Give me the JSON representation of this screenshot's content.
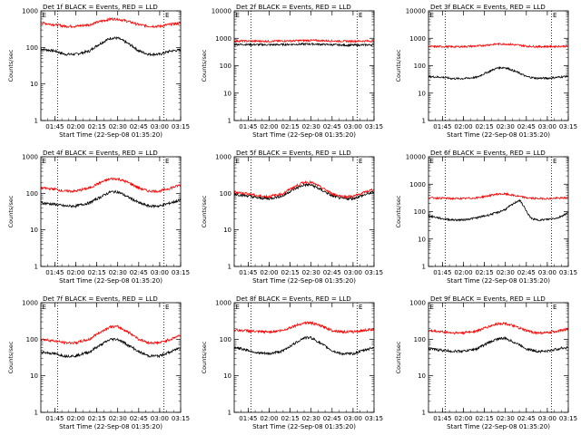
{
  "style": {
    "events_color": "#000000",
    "lld_color": "#ff0000",
    "frame_color": "#000000",
    "background": "#ffffff"
  },
  "chart_data": [
    {
      "type": "line",
      "title": "Det 1f BLACK = Events, RED = LLD",
      "corner_tag": "E",
      "xlabel": "Start Time (22-Sep-08 01:35:20)",
      "ylabel": "Counts/sec",
      "yscale": "log",
      "ylim": [
        1,
        1000
      ],
      "y_ticks": [
        1,
        10,
        100,
        1000
      ],
      "y_tick_labels": [
        "1",
        "10",
        "100",
        "1000"
      ],
      "xlim_minutes": [
        95,
        195
      ],
      "x_ticks": [
        105,
        120,
        135,
        150,
        165,
        180,
        195
      ],
      "x_tick_labels": [
        "01:45",
        "02:00",
        "02:15",
        "02:30",
        "02:45",
        "03:00",
        "03:15"
      ],
      "vlines_minutes": [
        107,
        183
      ],
      "series": [
        {
          "name": "Events",
          "color": "#000000",
          "t": [
            95,
            105,
            112,
            120,
            130,
            138,
            145,
            150,
            157,
            165,
            172,
            180,
            188,
            195
          ],
          "values": [
            90,
            80,
            65,
            65,
            80,
            130,
            180,
            180,
            130,
            80,
            65,
            65,
            80,
            85
          ]
        },
        {
          "name": "LLD",
          "color": "#ff0000",
          "t": [
            95,
            105,
            112,
            120,
            130,
            138,
            145,
            150,
            157,
            165,
            172,
            180,
            188,
            195
          ],
          "values": [
            470,
            420,
            380,
            380,
            420,
            520,
            600,
            600,
            520,
            420,
            380,
            380,
            430,
            460
          ]
        }
      ]
    },
    {
      "type": "line",
      "title": "Det 2f BLACK = Events, RED = LLD",
      "corner_tag": "E",
      "xlabel": "Start Time (22-Sep-08 01:35:20)",
      "ylabel": "Counts/sec",
      "yscale": "log",
      "ylim": [
        1,
        10000
      ],
      "y_ticks": [
        1,
        10,
        100,
        1000,
        10000
      ],
      "y_tick_labels": [
        "1",
        "10",
        "100",
        "1000",
        "10000"
      ],
      "xlim_minutes": [
        95,
        195
      ],
      "x_ticks": [
        105,
        120,
        135,
        150,
        165,
        180,
        195
      ],
      "x_tick_labels": [
        "01:45",
        "02:00",
        "02:15",
        "02:30",
        "02:45",
        "03:00",
        "03:15"
      ],
      "vlines_minutes": [
        107,
        183
      ],
      "series": [
        {
          "name": "Events",
          "color": "#000000",
          "t": [
            95,
            120,
            150,
            175,
            195
          ],
          "values": [
            600,
            580,
            620,
            560,
            580
          ]
        },
        {
          "name": "LLD",
          "color": "#ff0000",
          "t": [
            95,
            120,
            150,
            175,
            195
          ],
          "values": [
            800,
            780,
            840,
            780,
            800
          ]
        }
      ]
    },
    {
      "type": "line",
      "title": "Det 3f BLACK = Events, RED = LLD",
      "corner_tag": "E",
      "xlabel": "Start Time (22-Sep-08 01:35:20)",
      "ylabel": "Counts/sec",
      "yscale": "log",
      "ylim": [
        1,
        10000
      ],
      "y_ticks": [
        1,
        10,
        100,
        1000,
        10000
      ],
      "y_tick_labels": [
        "1",
        "10",
        "100",
        "1000",
        "10000"
      ],
      "xlim_minutes": [
        95,
        195
      ],
      "x_ticks": [
        105,
        120,
        135,
        150,
        165,
        180,
        195
      ],
      "x_tick_labels": [
        "01:45",
        "02:00",
        "02:15",
        "02:30",
        "02:45",
        "03:00",
        "03:15"
      ],
      "vlines_minutes": [
        107,
        183
      ],
      "series": [
        {
          "name": "Events",
          "color": "#000000",
          "t": [
            95,
            105,
            112,
            120,
            130,
            138,
            145,
            150,
            157,
            165,
            172,
            180,
            188,
            195
          ],
          "values": [
            40,
            38,
            34,
            34,
            38,
            60,
            85,
            85,
            62,
            40,
            35,
            35,
            38,
            42
          ]
        },
        {
          "name": "LLD",
          "color": "#ff0000",
          "t": [
            95,
            105,
            112,
            120,
            130,
            138,
            145,
            150,
            157,
            165,
            172,
            180,
            188,
            195
          ],
          "values": [
            500,
            500,
            490,
            500,
            520,
            580,
            620,
            620,
            580,
            520,
            500,
            500,
            510,
            520
          ]
        }
      ]
    },
    {
      "type": "line",
      "title": "Det 4f BLACK = Events, RED = LLD",
      "corner_tag": "E",
      "xlabel": "Start Time (22-Sep-08 01:35:20)",
      "ylabel": "Counts/sec",
      "yscale": "log",
      "ylim": [
        1,
        1000
      ],
      "y_ticks": [
        1,
        10,
        100,
        1000
      ],
      "y_tick_labels": [
        "1",
        "10",
        "100",
        "1000"
      ],
      "xlim_minutes": [
        95,
        195
      ],
      "x_ticks": [
        105,
        120,
        135,
        150,
        165,
        180,
        195
      ],
      "x_tick_labels": [
        "01:45",
        "02:00",
        "02:15",
        "02:30",
        "02:45",
        "03:00",
        "03:15"
      ],
      "vlines_minutes": [
        107,
        183
      ],
      "series": [
        {
          "name": "Events",
          "color": "#000000",
          "t": [
            95,
            105,
            112,
            120,
            130,
            138,
            145,
            150,
            157,
            165,
            172,
            180,
            188,
            195
          ],
          "values": [
            55,
            50,
            45,
            45,
            55,
            80,
            110,
            110,
            80,
            55,
            45,
            45,
            55,
            65
          ]
        },
        {
          "name": "LLD",
          "color": "#ff0000",
          "t": [
            95,
            105,
            112,
            120,
            130,
            138,
            145,
            150,
            157,
            165,
            172,
            180,
            188,
            195
          ],
          "values": [
            140,
            130,
            115,
            115,
            140,
            200,
            250,
            250,
            200,
            140,
            115,
            115,
            140,
            170
          ]
        }
      ]
    },
    {
      "type": "line",
      "title": "Det 5f BLACK = Events, RED = LLD",
      "corner_tag": "E",
      "xlabel": "Start Time (22-Sep-08 01:35:20)",
      "ylabel": "Counts/sec",
      "yscale": "log",
      "ylim": [
        1,
        1000
      ],
      "y_ticks": [
        1,
        10,
        100,
        1000
      ],
      "y_tick_labels": [
        "1",
        "10",
        "100",
        "1000"
      ],
      "xlim_minutes": [
        95,
        195
      ],
      "x_ticks": [
        105,
        120,
        135,
        150,
        165,
        180,
        195
      ],
      "x_tick_labels": [
        "01:45",
        "02:00",
        "02:15",
        "02:30",
        "02:45",
        "03:00",
        "03:15"
      ],
      "vlines_minutes": [
        107,
        183
      ],
      "series": [
        {
          "name": "Events",
          "color": "#000000",
          "t": [
            95,
            105,
            112,
            120,
            130,
            138,
            145,
            150,
            157,
            165,
            172,
            180,
            188,
            195
          ],
          "values": [
            95,
            85,
            75,
            72,
            85,
            130,
            170,
            170,
            125,
            85,
            72,
            72,
            90,
            110
          ]
        },
        {
          "name": "LLD",
          "color": "#ff0000",
          "t": [
            95,
            105,
            112,
            120,
            130,
            138,
            145,
            150,
            157,
            165,
            172,
            180,
            188,
            195
          ],
          "values": [
            110,
            98,
            85,
            82,
            98,
            150,
            200,
            200,
            145,
            98,
            82,
            82,
            105,
            130
          ]
        }
      ]
    },
    {
      "type": "line",
      "title": "Det 6f BLACK = Events, RED = LLD",
      "corner_tag": "E",
      "xlabel": "Start Time (22-Sep-08 01:35:20)",
      "ylabel": "Counts/sec",
      "yscale": "log",
      "ylim": [
        1,
        10000
      ],
      "y_ticks": [
        1,
        10,
        100,
        1000,
        10000
      ],
      "y_tick_labels": [
        "1",
        "10",
        "100",
        "1000",
        "10000"
      ],
      "xlim_minutes": [
        95,
        195
      ],
      "x_ticks": [
        105,
        120,
        135,
        150,
        165,
        180,
        195
      ],
      "x_tick_labels": [
        "01:45",
        "02:00",
        "02:15",
        "02:30",
        "02:45",
        "03:00",
        "03:15"
      ],
      "vlines_minutes": [
        107,
        183
      ],
      "series": [
        {
          "name": "Events",
          "color": "#000000",
          "t": [
            95,
            105,
            112,
            120,
            130,
            138,
            145,
            150,
            155,
            160,
            163,
            166,
            169,
            172,
            176,
            180,
            188,
            195
          ],
          "values": [
            70,
            55,
            50,
            50,
            60,
            75,
            95,
            120,
            180,
            260,
            160,
            80,
            55,
            50,
            50,
            52,
            60,
            90
          ]
        },
        {
          "name": "LLD",
          "color": "#ff0000",
          "t": [
            95,
            105,
            112,
            120,
            130,
            138,
            145,
            150,
            157,
            165,
            172,
            180,
            188,
            195
          ],
          "values": [
            320,
            310,
            300,
            300,
            320,
            380,
            440,
            440,
            380,
            320,
            300,
            300,
            310,
            320
          ]
        }
      ]
    },
    {
      "type": "line",
      "title": "Det 7f BLACK = Events, RED = LLD",
      "corner_tag": "E",
      "xlabel": "Start Time (22-Sep-08 01:35:20)",
      "ylabel": "Counts/sec",
      "yscale": "log",
      "ylim": [
        1,
        1000
      ],
      "y_ticks": [
        1,
        10,
        100,
        1000
      ],
      "y_tick_labels": [
        "1",
        "10",
        "100",
        "1000"
      ],
      "xlim_minutes": [
        95,
        195
      ],
      "x_ticks": [
        105,
        120,
        135,
        150,
        165,
        180,
        195
      ],
      "x_tick_labels": [
        "01:45",
        "02:00",
        "02:15",
        "02:30",
        "02:45",
        "03:00",
        "03:15"
      ],
      "vlines_minutes": [
        107,
        183
      ],
      "series": [
        {
          "name": "Events",
          "color": "#000000",
          "t": [
            95,
            105,
            112,
            120,
            130,
            138,
            145,
            150,
            157,
            165,
            172,
            180,
            188,
            195
          ],
          "values": [
            45,
            40,
            35,
            35,
            45,
            70,
            100,
            100,
            70,
            45,
            35,
            35,
            45,
            60
          ]
        },
        {
          "name": "LLD",
          "color": "#ff0000",
          "t": [
            95,
            105,
            112,
            120,
            130,
            138,
            145,
            150,
            157,
            165,
            172,
            180,
            188,
            195
          ],
          "values": [
            100,
            90,
            80,
            80,
            100,
            160,
            220,
            220,
            160,
            100,
            80,
            80,
            100,
            130
          ]
        }
      ]
    },
    {
      "type": "line",
      "title": "Det 8f BLACK = Events, RED = LLD",
      "corner_tag": "E",
      "xlabel": "Start Time (22-Sep-08 01:35:20)",
      "ylabel": "Counts/sec",
      "yscale": "log",
      "ylim": [
        1,
        1000
      ],
      "y_ticks": [
        1,
        10,
        100,
        1000
      ],
      "y_tick_labels": [
        "1",
        "10",
        "100",
        "1000"
      ],
      "xlim_minutes": [
        95,
        195
      ],
      "x_ticks": [
        105,
        120,
        135,
        150,
        165,
        180,
        195
      ],
      "x_tick_labels": [
        "01:45",
        "02:00",
        "02:15",
        "02:30",
        "02:45",
        "03:00",
        "03:15"
      ],
      "vlines_minutes": [
        107,
        183
      ],
      "series": [
        {
          "name": "Events",
          "color": "#000000",
          "t": [
            95,
            105,
            112,
            120,
            130,
            138,
            145,
            150,
            157,
            165,
            172,
            180,
            188,
            195
          ],
          "values": [
            60,
            50,
            42,
            40,
            48,
            75,
            110,
            110,
            75,
            48,
            40,
            40,
            50,
            60
          ]
        },
        {
          "name": "LLD",
          "color": "#ff0000",
          "t": [
            95,
            105,
            112,
            120,
            130,
            138,
            145,
            150,
            157,
            165,
            172,
            180,
            188,
            195
          ],
          "values": [
            180,
            170,
            160,
            160,
            175,
            230,
            280,
            280,
            230,
            175,
            160,
            160,
            175,
            190
          ]
        }
      ]
    },
    {
      "type": "line",
      "title": "Det 9f BLACK = Events, RED = LLD",
      "corner_tag": "E",
      "xlabel": "Start Time (22-Sep-08 01:35:20)",
      "ylabel": "Counts/sec",
      "yscale": "log",
      "ylim": [
        1,
        1000
      ],
      "y_ticks": [
        1,
        10,
        100,
        1000
      ],
      "y_tick_labels": [
        "1",
        "10",
        "100",
        "1000"
      ],
      "xlim_minutes": [
        95,
        195
      ],
      "x_ticks": [
        105,
        120,
        135,
        150,
        165,
        180,
        195
      ],
      "x_tick_labels": [
        "01:45",
        "02:00",
        "02:15",
        "02:30",
        "02:45",
        "03:00",
        "03:15"
      ],
      "vlines_minutes": [
        107,
        183
      ],
      "series": [
        {
          "name": "Events",
          "color": "#000000",
          "t": [
            95,
            105,
            112,
            120,
            130,
            138,
            145,
            150,
            157,
            165,
            172,
            180,
            188,
            195
          ],
          "values": [
            55,
            50,
            47,
            47,
            55,
            80,
            105,
            105,
            80,
            55,
            47,
            47,
            55,
            60
          ]
        },
        {
          "name": "LLD",
          "color": "#ff0000",
          "t": [
            95,
            105,
            112,
            120,
            130,
            138,
            145,
            150,
            157,
            165,
            172,
            180,
            188,
            195
          ],
          "values": [
            170,
            160,
            150,
            150,
            170,
            220,
            270,
            270,
            220,
            170,
            150,
            150,
            170,
            185
          ]
        }
      ]
    }
  ]
}
